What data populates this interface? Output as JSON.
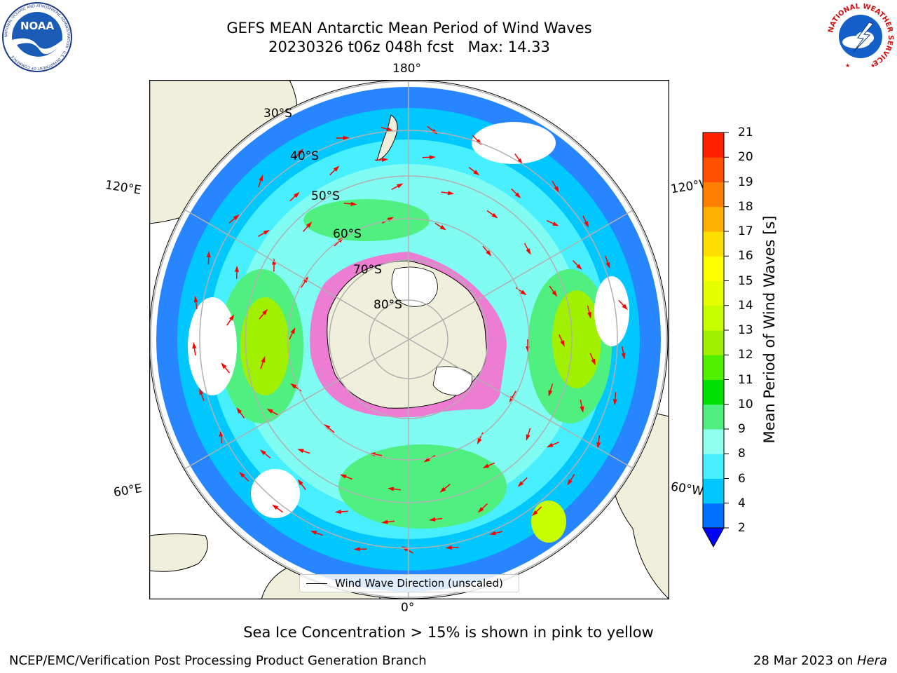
{
  "header": {
    "title_line1": "GEFS MEAN Antarctic Mean Period of Wind Waves",
    "title_line2": "20230326 t06z 048h fcst   Max: 14.33"
  },
  "logos": {
    "noaa": {
      "name": "noaa-logo",
      "text": "NOAA",
      "ring_text": "NATIONAL OCEANIC AND ATMOSPHERIC ADMINISTRATION · U.S. DEPARTMENT OF COMMERCE"
    },
    "nws": {
      "name": "nws-logo",
      "ring_text": "NATIONAL WEATHER SERVICE"
    }
  },
  "map": {
    "projection": "south-polar-stereographic",
    "longitude_labels": {
      "top": "180°",
      "bottom": "0°",
      "upper_left": "120°E",
      "lower_left": "60°E",
      "upper_right": "120°W",
      "lower_right": "60°W"
    },
    "latitude_labels": [
      "30°S",
      "40°S",
      "50°S",
      "60°S",
      "70°S",
      "80°S"
    ],
    "colors": {
      "land": "#efefdb",
      "ocean_background": "#ffffff",
      "grid": "#b0b0b0",
      "arrows": "#ff0000",
      "sea_ice_low": "#ff66cc",
      "sea_ice_high": "#ffff66"
    }
  },
  "colorbar": {
    "label": "Mean Period of Wind Waves [s]",
    "ticks": [
      "2",
      "4",
      "6",
      "8",
      "9",
      "10",
      "11",
      "12",
      "13",
      "14",
      "15",
      "16",
      "17",
      "18",
      "19",
      "20",
      "21"
    ],
    "colors": [
      "#0070ff",
      "#00c8ff",
      "#48f0ff",
      "#8ffff0",
      "#50f080",
      "#00e000",
      "#50f000",
      "#a0f000",
      "#c8ff00",
      "#e6ff00",
      "#ffff00",
      "#ffdf00",
      "#ffb000",
      "#ff8000",
      "#ff5000",
      "#ff2000"
    ],
    "under_color": "#0000ff"
  },
  "legend": {
    "label": "Wind Wave Direction (unscaled)"
  },
  "footnote": "Sea Ice Concentration > 15% is shown in pink to yellow",
  "credits": {
    "left": "NCEP/EMC/Verification Post Processing Product Generation Branch",
    "right_prefix": "28 Mar 2023 on ",
    "right_machine": "Hera"
  }
}
